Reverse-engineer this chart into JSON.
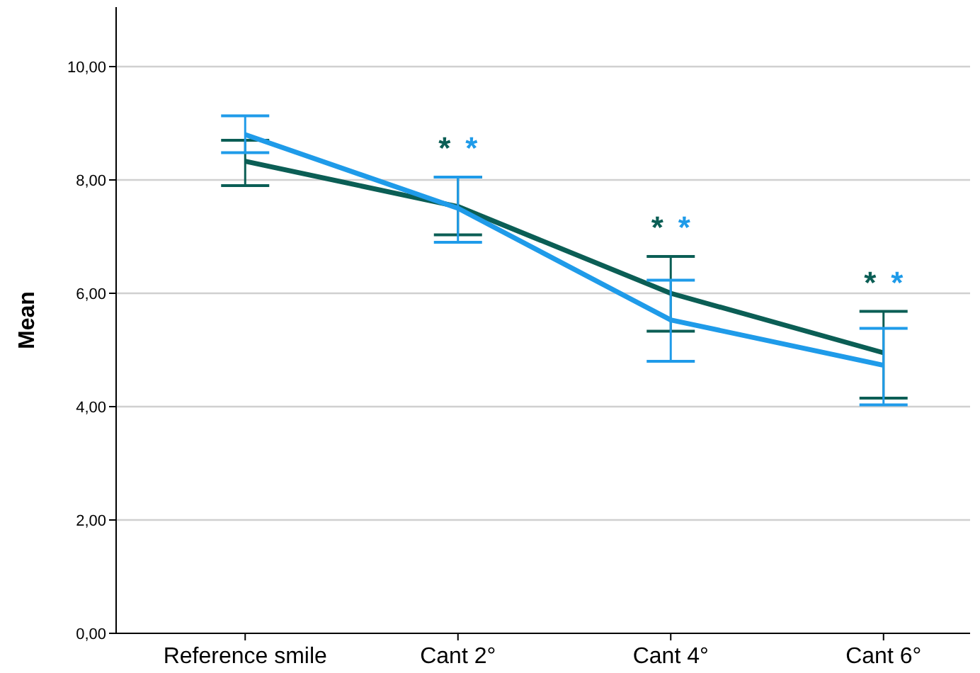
{
  "chart_data": {
    "type": "line",
    "ylabel": "Mean",
    "categories": [
      "Reference smile",
      "Cant 2°",
      "Cant 4°",
      "Cant 6°"
    ],
    "series": [
      {
        "color": "#0b5e55",
        "values": [
          8.33,
          7.53,
          6.0,
          4.95
        ],
        "errors": [
          [
            7.9,
            8.7
          ],
          [
            7.03,
            8.05
          ],
          [
            5.33,
            6.65
          ],
          [
            4.15,
            5.68
          ]
        ]
      },
      {
        "color": "#1f9be9",
        "values": [
          8.8,
          7.5,
          5.53,
          4.73
        ],
        "errors": [
          [
            8.48,
            9.13
          ],
          [
            6.9,
            8.05
          ],
          [
            4.8,
            6.23
          ],
          [
            4.03,
            5.38
          ]
        ]
      }
    ],
    "ylim": [
      0,
      11.05
    ],
    "yticks": [
      {
        "value": 0,
        "label": "0,00"
      },
      {
        "value": 2,
        "label": "2,00"
      },
      {
        "value": 4,
        "label": "4,00"
      },
      {
        "value": 6,
        "label": "6,00"
      },
      {
        "value": 8,
        "label": "8,00"
      },
      {
        "value": 10,
        "label": "10,00"
      }
    ],
    "grid": "y",
    "marker": "none",
    "line_style": "solid",
    "annotations": [
      "*",
      "*",
      "*",
      "*",
      "*",
      "*"
    ]
  }
}
